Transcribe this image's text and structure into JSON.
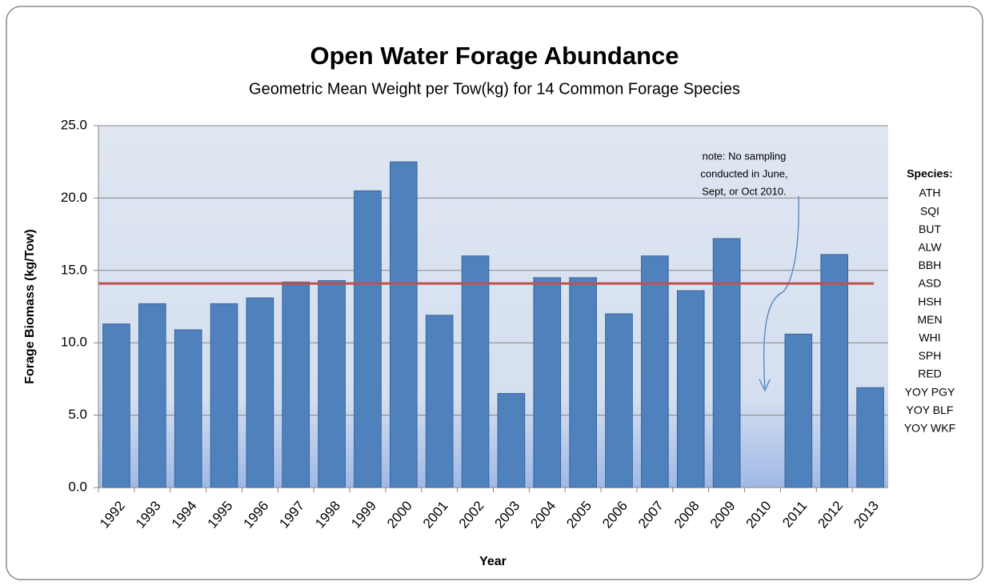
{
  "chart_data": {
    "type": "bar",
    "title": "Open Water Forage Abundance",
    "subtitle": "Geometric Mean Weight per Tow(kg) for 14 Common Forage Species",
    "x_label": "Year",
    "y_label": "Forage Biomass  (kg/Tow)",
    "categories": [
      "1992",
      "1993",
      "1994",
      "1995",
      "1996",
      "1997",
      "1998",
      "1999",
      "2000",
      "2001",
      "2002",
      "2003",
      "2004",
      "2005",
      "2006",
      "2007",
      "2008",
      "2009",
      "2010",
      "2011",
      "2012",
      "2013"
    ],
    "values": [
      11.3,
      12.7,
      10.9,
      12.7,
      13.1,
      14.2,
      14.3,
      20.5,
      22.5,
      11.9,
      16.0,
      6.5,
      14.5,
      14.5,
      12.0,
      16.0,
      13.6,
      17.2,
      null,
      10.6,
      16.1,
      6.9
    ],
    "color": "#4f81bd",
    "mean_line": {
      "value": 14.1,
      "color": "#c0504d"
    },
    "ylim": [
      0,
      25
    ],
    "yticks": [
      {
        "value": 0,
        "label": "0.0"
      },
      {
        "value": 5,
        "label": "5.0"
      },
      {
        "value": 10,
        "label": "10.0"
      },
      {
        "value": 15,
        "label": "15.0"
      },
      {
        "value": 20,
        "label": "20.0"
      },
      {
        "value": 25,
        "label": "25.0"
      }
    ],
    "grid": true,
    "annotation": [
      "note: No sampling",
      "conducted in June,",
      "Sept, or Oct 2010."
    ],
    "species_title": "Species:",
    "species": [
      "ATH",
      "SQI",
      "BUT",
      "ALW",
      "BBH",
      "ASD",
      "HSH",
      "MEN",
      "WHI",
      "SPH",
      "RED",
      "YOY PGY",
      "YOY BLF",
      "YOY WKF"
    ]
  }
}
